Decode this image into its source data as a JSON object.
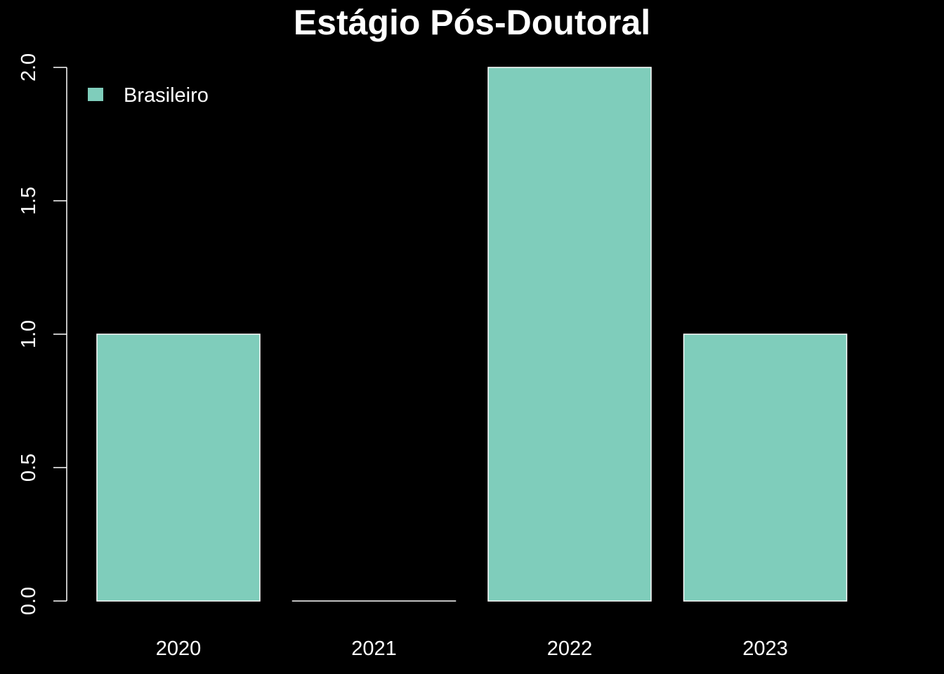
{
  "chart_data": {
    "type": "bar",
    "title": "Estágio Pós-Doutoral",
    "xlabel": "",
    "ylabel": "",
    "categories": [
      "2020",
      "2021",
      "2022",
      "2023"
    ],
    "series": [
      {
        "name": "Brasileiro",
        "values": [
          1,
          0,
          2,
          1
        ]
      }
    ],
    "ylim": [
      0,
      2
    ],
    "yticks": [
      0.0,
      0.5,
      1.0,
      1.5,
      2.0
    ],
    "ytick_labels": [
      "0.0",
      "0.5",
      "1.0",
      "1.5",
      "2.0"
    ],
    "grid": false,
    "legend_position": "top-left",
    "colors": {
      "background": "#000000",
      "foreground": "#FFFFFF",
      "bar_fill": "#7FCDBB",
      "bar_border": "#FFFFFF"
    }
  }
}
